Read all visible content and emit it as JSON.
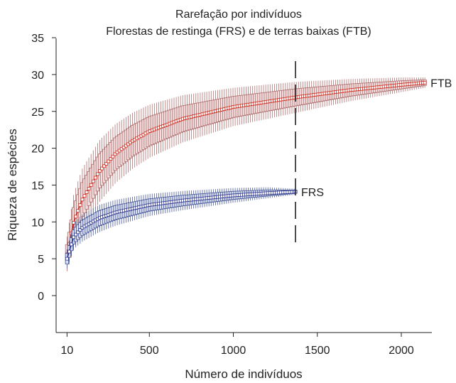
{
  "chart_data": {
    "type": "line",
    "title": "Rarefação por indivíduos",
    "subtitle": "Florestas de restinga (FRS) e de terras baixas (FTB)",
    "xlabel": "Número de indivíduos",
    "ylabel": "Riqueza de espécies",
    "xlim": [
      -50,
      2180
    ],
    "ylim": [
      -5,
      35
    ],
    "x_ticks": [
      10,
      500,
      1000,
      1500,
      2000
    ],
    "x_tick_labels": [
      "10",
      "500",
      "1000",
      "1500",
      "2000"
    ],
    "y_ticks": [
      0,
      5,
      10,
      15,
      20,
      25,
      30,
      35
    ],
    "y_tick_labels": [
      "0",
      "5",
      "10",
      "15",
      "20",
      "25",
      "30",
      "35"
    ],
    "grid": false,
    "reference_line_x": 1370,
    "series": [
      {
        "name": "FTB",
        "line_color": "#cc2a1e",
        "box_color": "#b07070",
        "box_fill": "#f1dede",
        "max_x": 2140,
        "x": [
          10,
          50,
          100,
          200,
          300,
          400,
          500,
          700,
          1000,
          1370,
          1700,
          2000,
          2140
        ],
        "mean": [
          5.6,
          10.0,
          13.0,
          16.8,
          19.3,
          21.0,
          22.3,
          24.0,
          25.6,
          26.9,
          27.9,
          28.6,
          28.9
        ],
        "upper": [
          8.0,
          13.8,
          17.2,
          21.0,
          23.3,
          24.8,
          25.9,
          27.2,
          28.2,
          29.0,
          29.4,
          29.6,
          29.6
        ],
        "lower": [
          3.3,
          6.2,
          8.8,
          12.6,
          15.3,
          17.2,
          18.7,
          20.8,
          23.0,
          24.8,
          26.4,
          27.6,
          28.2
        ]
      },
      {
        "name": "FRS",
        "line_color": "#2c3590",
        "box_color": "#4a5a9a",
        "box_fill": "#dadff0",
        "max_x": 1370,
        "x": [
          10,
          50,
          100,
          200,
          300,
          500,
          700,
          1000,
          1200,
          1370
        ],
        "mean": [
          5.0,
          8.0,
          9.2,
          10.5,
          11.3,
          12.3,
          12.9,
          13.6,
          13.9,
          14.1
        ],
        "upper": [
          6.3,
          9.8,
          11.0,
          12.3,
          13.0,
          13.8,
          14.2,
          14.6,
          14.7,
          14.5
        ],
        "lower": [
          3.7,
          6.3,
          7.3,
          8.6,
          9.5,
          10.8,
          11.6,
          12.6,
          13.2,
          13.7
        ]
      }
    ]
  }
}
